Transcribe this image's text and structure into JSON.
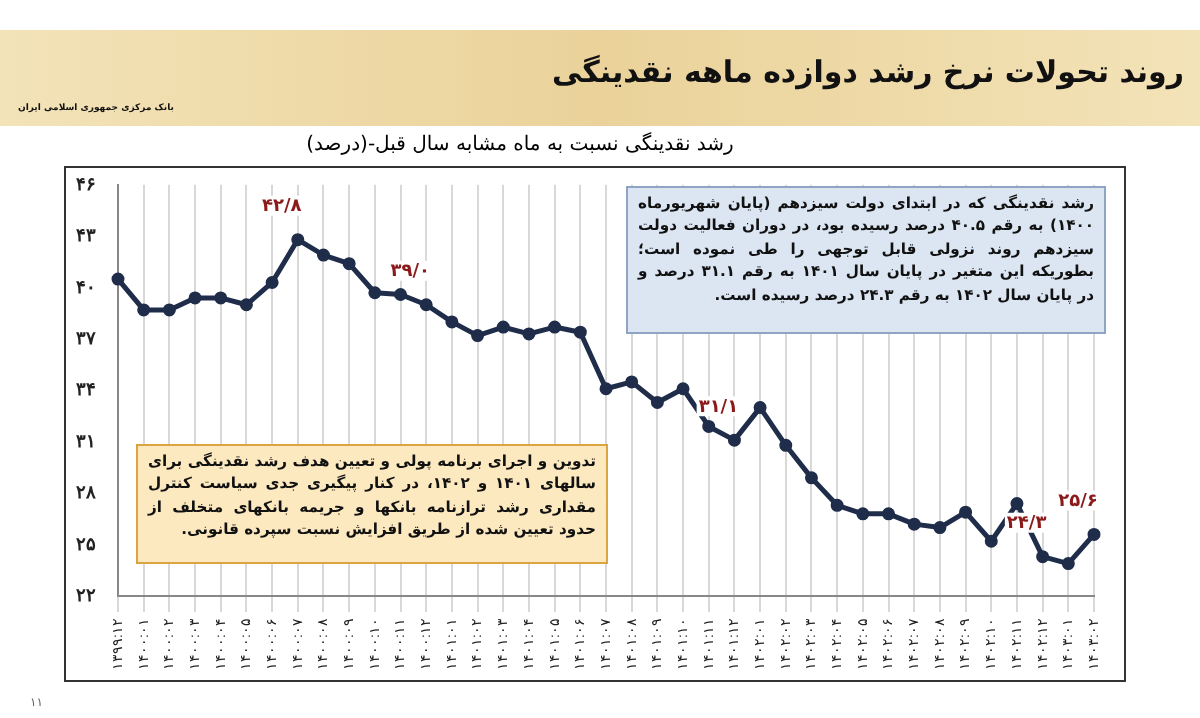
{
  "chart_data": {
    "type": "line",
    "title": "روند تحولات نرخ رشد دوازده ماهه نقدینگی",
    "subtitle": "رشد نقدینگی نسبت به ماه مشابه سال قبل-(درصد)",
    "categories": [
      "۱۳۹۹:۱۲",
      "۱۴۰۰:۰۱",
      "۱۴۰۰:۰۲",
      "۱۴۰۰:۰۳",
      "۱۴۰۰:۰۴",
      "۱۴۰۰:۰۵",
      "۱۴۰۰:۰۶",
      "۱۴۰۰:۰۷",
      "۱۴۰۰:۰۸",
      "۱۴۰۰:۰۹",
      "۱۴۰۰:۱۰",
      "۱۴۰۰:۱۱",
      "۱۴۰۰:۱۲",
      "۱۴۰۱:۰۱",
      "۱۴۰۱:۰۲",
      "۱۴۰۱:۰۳",
      "۱۴۰۱:۰۴",
      "۱۴۰۱:۰۵",
      "۱۴۰۱:۰۶",
      "۱۴۰۱:۰۷",
      "۱۴۰۱:۰۸",
      "۱۴۰۱:۰۹",
      "۱۴۰۱:۱۰",
      "۱۴۰۱:۱۱",
      "۱۴۰۱:۱۲",
      "۱۴۰۲:۰۱",
      "۱۴۰۲:۰۲",
      "۱۴۰۲:۰۳",
      "۱۴۰۲:۰۴",
      "۱۴۰۲:۰۵",
      "۱۴۰۲:۰۶",
      "۱۴۰۲:۰۷",
      "۱۴۰۲:۰۸",
      "۱۴۰۲:۰۹",
      "۱۴۰۲:۱۰",
      "۱۴۰۲:۱۱",
      "۱۴۰۲:۱۲",
      "۱۴۰۳:۰۱",
      "۱۴۰۳:۰۲"
    ],
    "series": [
      {
        "color": "#1f2d4a",
        "values": [
          40.5,
          38.7,
          38.7,
          39.4,
          39.4,
          39.0,
          40.3,
          42.8,
          41.9,
          41.4,
          39.7,
          39.6,
          39.0,
          38.0,
          37.2,
          37.7,
          37.3,
          37.7,
          37.4,
          34.1,
          34.5,
          33.3,
          34.1,
          31.9,
          31.1,
          33.0,
          30.8,
          28.9,
          27.3,
          26.8,
          26.8,
          26.2,
          26.0,
          26.9,
          25.2,
          27.4,
          24.3,
          23.9,
          25.6
        ]
      }
    ],
    "ylim": [
      22,
      46
    ],
    "yticks": [
      {
        "value": 22,
        "label": "۲۲"
      },
      {
        "value": 25,
        "label": "۲۵"
      },
      {
        "value": 28,
        "label": "۲۸"
      },
      {
        "value": 31,
        "label": "۳۱"
      },
      {
        "value": 34,
        "label": "۳۴"
      },
      {
        "value": 37,
        "label": "۳۷"
      },
      {
        "value": 40,
        "label": "۴۰"
      },
      {
        "value": 43,
        "label": "۴۳"
      },
      {
        "value": 46,
        "label": "۴۶"
      }
    ],
    "grid": "x",
    "legend": false,
    "marker": "circle",
    "line_style": "solid",
    "annotations": [
      {
        "text": "۴۲/۸",
        "x": "۱۴۰۰:۰۷",
        "y": 42.8
      },
      {
        "text": "۳۹/۰",
        "x": "۱۴۰۰:۱۲",
        "y": 39.0
      },
      {
        "text": "۳۱/۱",
        "x": "۱۴۰۱:۱۲",
        "y": 31.1
      },
      {
        "text": "۲۴/۳",
        "x": "۱۴۰۲:۱۲",
        "y": 24.3
      },
      {
        "text": "۲۵/۶",
        "x": "۱۴۰۳:۰۲",
        "y": 25.6
      },
      "بانک مرکزی جمهوری اسلامی ایران",
      "رشد نقدینگی که در ابتدای دولت سیزدهم (پایان شهریورماه ۱۴۰۰) به رقم ۴۰.۵ درصد رسیده بود، در دوران فعالیت دولت سیزدهم روند نزولی قابل توجهی را طی نموده است؛ بطوریکه این متغیر در پایان سال ۱۴۰۱ به رقم ۳۱.۱ درصد و در پایان سال ۱۴۰۲ به رقم ۲۴.۳ درصد رسیده است.",
      "تدوین و اجرای برنامه پولی و تعیین هدف رشد نقدینگی برای سالهای ۱۴۰۱ و ۱۴۰۲، در کنار پیگیری جدی سیاست کنترل مقداری رشد ترازنامه بانکها و جریمه بانکهای متخلف از حدود تعیین شده از طریق افزایش نسبت سپرده قانونی.",
      "۱۱"
    ]
  }
}
